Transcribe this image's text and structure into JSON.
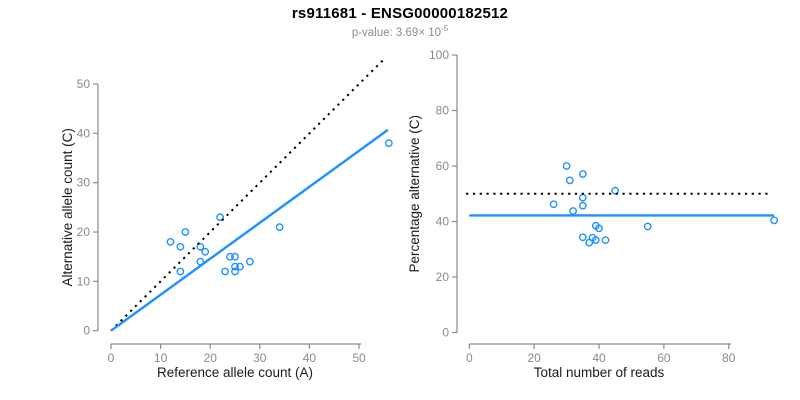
{
  "header": {
    "title": "rs911681 - ENSG00000182512",
    "subtitle_text": "p-value: 3.69× 10",
    "subtitle_exponent": "-5"
  },
  "colors": {
    "point_blue": "#1E90FF",
    "line_blue": "#1E90FF",
    "dotted_black": "#000000",
    "tick_gray": "#8a8a8a",
    "axis_gray": "#8a8a8a",
    "axis_title_dark": "#1a1a1a",
    "title_black": "#000000",
    "subtitle_gray": "#8c8c8c"
  },
  "chart_data": [
    {
      "id": "allele-count-scatter",
      "type": "scatter",
      "title": "",
      "xlabel": "Reference allele count (A)",
      "ylabel": "Alternative allele count (C)",
      "xticks": [
        0,
        10,
        20,
        30,
        40,
        50
      ],
      "yticks": [
        0,
        10,
        20,
        30,
        40,
        50
      ],
      "xlim": [
        0,
        56
      ],
      "ylim": [
        0,
        56
      ],
      "grid": false,
      "points": [
        [
          12,
          18
        ],
        [
          15,
          20
        ],
        [
          14,
          17
        ],
        [
          22,
          23
        ],
        [
          18,
          17
        ],
        [
          19,
          16
        ],
        [
          18,
          14
        ],
        [
          14,
          12
        ],
        [
          24,
          15
        ],
        [
          25,
          15
        ],
        [
          34,
          21
        ],
        [
          23,
          12
        ],
        [
          25,
          13
        ],
        [
          26,
          13
        ],
        [
          25,
          12
        ],
        [
          28,
          14
        ],
        [
          56,
          38
        ]
      ],
      "lines": [
        {
          "name": "identity-line",
          "style": "dotted",
          "color": "#000000",
          "from": [
            0,
            0
          ],
          "to": [
            55.4,
            55.4
          ]
        },
        {
          "name": "fit-line",
          "style": "solid",
          "color": "#1E90FF",
          "slope": 0.73,
          "from": [
            0,
            0
          ],
          "to": [
            55.8,
            40.7
          ]
        }
      ]
    },
    {
      "id": "percentage-vs-reads-scatter",
      "type": "scatter",
      "title": "",
      "xlabel": "Total number of reads",
      "ylabel": "Percentage alternative (C)",
      "xticks": [
        0,
        20,
        40,
        60,
        80
      ],
      "yticks": [
        0,
        20,
        40,
        60,
        80,
        100
      ],
      "xlim": [
        0,
        94
      ],
      "ylim": [
        0,
        100
      ],
      "grid": false,
      "points": [
        [
          30,
          60
        ],
        [
          35,
          57.1
        ],
        [
          31,
          54.8
        ],
        [
          45,
          51.1
        ],
        [
          35,
          48.6
        ],
        [
          35,
          45.7
        ],
        [
          26,
          46.2
        ],
        [
          32,
          43.8
        ],
        [
          39,
          38.5
        ],
        [
          40,
          37.5
        ],
        [
          55,
          38.2
        ],
        [
          35,
          34.3
        ],
        [
          38,
          34.2
        ],
        [
          39,
          33.3
        ],
        [
          37,
          32.4
        ],
        [
          42,
          33.3
        ],
        [
          94,
          40.4
        ]
      ],
      "lines": [
        {
          "name": "fifty-percent-line",
          "style": "dotted",
          "color": "#000000",
          "value": 50,
          "from": [
            -1,
            50
          ],
          "to": [
            92.8,
            50
          ]
        },
        {
          "name": "mean-percentage-line",
          "style": "solid",
          "color": "#1E90FF",
          "value": 42.2,
          "from": [
            0,
            42.2
          ],
          "to": [
            94,
            42.2
          ]
        }
      ]
    }
  ]
}
